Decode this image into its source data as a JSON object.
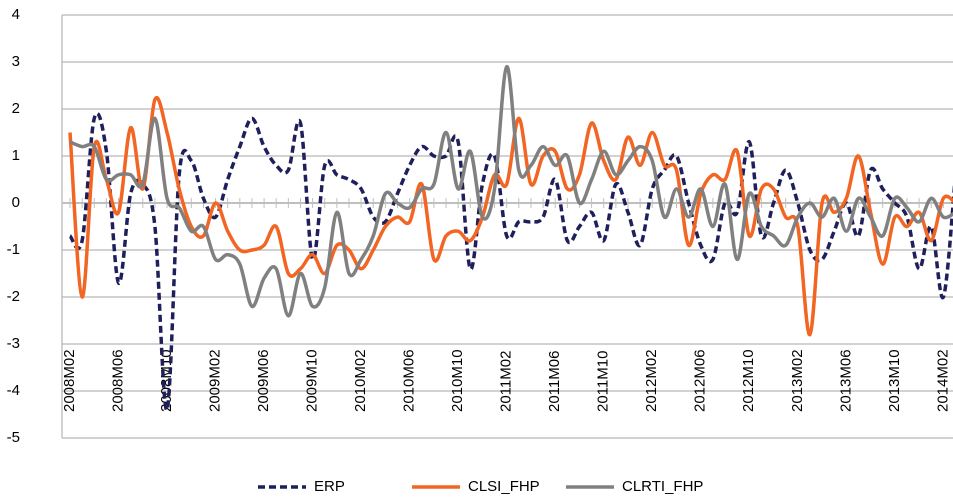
{
  "chart_data": {
    "type": "line",
    "categories": [
      "2008M02",
      null,
      null,
      null,
      "2008M06",
      null,
      null,
      null,
      "2008M10",
      null,
      null,
      null,
      "2009M02",
      null,
      null,
      null,
      "2009M06",
      null,
      null,
      null,
      "2009M10",
      null,
      null,
      null,
      "2010M02",
      null,
      null,
      null,
      "2010M06",
      null,
      null,
      null,
      "2010M10",
      null,
      null,
      null,
      "2011M02",
      null,
      null,
      null,
      "2011M06",
      null,
      null,
      null,
      "2011M10",
      null,
      null,
      null,
      "2012M02",
      null,
      null,
      null,
      "2012M06",
      null,
      null,
      null,
      "2012M10",
      null,
      null,
      null,
      "2013M02",
      null,
      null,
      null,
      "2013M06",
      null,
      null,
      null,
      "2013M10",
      null,
      null,
      null,
      "2014M02",
      null
    ],
    "series": [
      {
        "name": "ERP",
        "color": "#1f1f5c",
        "dashed": true,
        "values": [
          -0.7,
          -0.8,
          1.8,
          1.1,
          -1.7,
          0.2,
          0.4,
          -0.5,
          -4.4,
          0.6,
          0.9,
          0.1,
          -0.3,
          0.5,
          1.2,
          1.8,
          1.2,
          0.8,
          0.7,
          1.7,
          -1.2,
          0.8,
          0.6,
          0.5,
          0.3,
          -0.3,
          -0.4,
          0.2,
          0.8,
          1.2,
          1.0,
          1.0,
          1.3,
          -1.4,
          0.4,
          1.0,
          -0.7,
          -0.4,
          -0.4,
          -0.3,
          0.5,
          -0.8,
          -0.5,
          -0.2,
          -0.8,
          0.4,
          -0.2,
          -0.9,
          0.3,
          0.7,
          1.0,
          0.0,
          -0.9,
          -1.2,
          0.0,
          -0.2,
          1.3,
          -0.7,
          0.0,
          0.7,
          0.0,
          -1.0,
          -1.2,
          -0.6,
          0.0,
          -0.7,
          0.7,
          0.3,
          0.0,
          -0.3,
          -1.4,
          -0.5,
          -2.0,
          0.6
        ]
      },
      {
        "name": "CLSI_FHP",
        "color": "#f26522",
        "dashed": false,
        "values": [
          1.5,
          -2.0,
          1.2,
          0.5,
          -0.2,
          1.6,
          0.3,
          2.2,
          1.5,
          0.3,
          -0.5,
          -0.7,
          0.0,
          -0.6,
          -1.0,
          -1.0,
          -0.9,
          -0.5,
          -1.5,
          -1.4,
          -1.1,
          -1.5,
          -0.9,
          -1.0,
          -1.4,
          -1.0,
          -0.5,
          -0.3,
          -0.4,
          0.4,
          -1.2,
          -0.7,
          -0.6,
          -0.8,
          -0.3,
          0.6,
          0.4,
          1.8,
          0.4,
          1.0,
          1.1,
          0.3,
          0.6,
          1.7,
          0.9,
          0.5,
          1.4,
          0.8,
          1.5,
          0.8,
          0.7,
          -0.9,
          0.2,
          0.6,
          0.5,
          1.1,
          -0.7,
          0.3,
          0.3,
          -0.3,
          -0.5,
          -2.8,
          0.0,
          -0.2,
          0.1,
          1.0,
          -0.2,
          -1.3,
          -0.3,
          -0.5,
          -0.2,
          -0.8,
          0.1,
          0.0
        ]
      },
      {
        "name": "CLRTI_FHP",
        "color": "#808080",
        "dashed": false,
        "values": [
          1.3,
          1.2,
          1.2,
          0.5,
          0.6,
          0.6,
          0.4,
          1.8,
          0.1,
          -0.1,
          -0.6,
          -0.5,
          -1.2,
          -1.1,
          -1.3,
          -2.2,
          -1.6,
          -1.4,
          -2.4,
          -1.5,
          -2.2,
          -1.8,
          -0.2,
          -1.5,
          -1.2,
          -0.7,
          0.2,
          0.0,
          -0.1,
          0.3,
          0.4,
          1.5,
          0.3,
          1.1,
          -0.3,
          0.3,
          2.9,
          0.7,
          0.8,
          1.2,
          0.8,
          1.0,
          0.0,
          0.5,
          1.1,
          0.6,
          0.9,
          1.2,
          0.9,
          -0.3,
          0.3,
          -0.3,
          0.3,
          -0.5,
          0.4,
          -1.2,
          0.2,
          -0.5,
          -0.7,
          -0.9,
          -0.3,
          0.0,
          -0.3,
          0.1,
          -0.6,
          0.1,
          -0.3,
          -0.7,
          0.1,
          -0.1,
          -0.4,
          0.1,
          -0.3,
          -0.2
        ]
      }
    ],
    "ylim": [
      -5,
      4
    ],
    "yticks": [
      -5,
      -4,
      -3,
      -2,
      -1,
      0,
      1,
      2,
      3,
      4
    ],
    "grid": true,
    "legend": "bottom"
  }
}
